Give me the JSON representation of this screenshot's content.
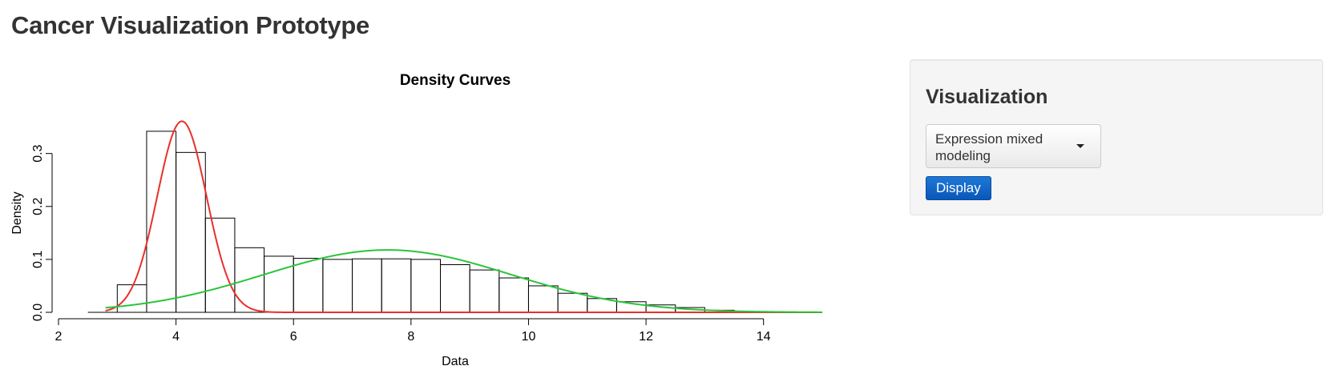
{
  "page": {
    "title": "Cancer Visualization Prototype"
  },
  "sidebar": {
    "heading": "Visualization",
    "select": {
      "value": "Expression mixed modeling"
    },
    "display_button": "Display"
  },
  "chart_data": {
    "type": "histogram-with-density-curves",
    "title": "Density Curves",
    "xlabel": "Data",
    "ylabel": "Density",
    "xlim": [
      2,
      15
    ],
    "ylim": [
      0,
      0.36
    ],
    "x_ticks": [
      "2",
      "4",
      "6",
      "8",
      "10",
      "12",
      "14"
    ],
    "y_ticks": [
      "0.0",
      "0.1",
      "0.2",
      "0.3"
    ],
    "grid": false,
    "bins": [
      {
        "x0": 2.5,
        "x1": 3.0,
        "density": 0.0
      },
      {
        "x0": 3.0,
        "x1": 3.5,
        "density": 0.052
      },
      {
        "x0": 3.5,
        "x1": 4.0,
        "density": 0.342
      },
      {
        "x0": 4.0,
        "x1": 4.5,
        "density": 0.302
      },
      {
        "x0": 4.5,
        "x1": 5.0,
        "density": 0.178
      },
      {
        "x0": 5.0,
        "x1": 5.5,
        "density": 0.122
      },
      {
        "x0": 5.5,
        "x1": 6.0,
        "density": 0.106
      },
      {
        "x0": 6.0,
        "x1": 6.5,
        "density": 0.102
      },
      {
        "x0": 6.5,
        "x1": 7.0,
        "density": 0.1
      },
      {
        "x0": 7.0,
        "x1": 7.5,
        "density": 0.101
      },
      {
        "x0": 7.5,
        "x1": 8.0,
        "density": 0.101
      },
      {
        "x0": 8.0,
        "x1": 8.5,
        "density": 0.1
      },
      {
        "x0": 8.5,
        "x1": 9.0,
        "density": 0.09
      },
      {
        "x0": 9.0,
        "x1": 9.5,
        "density": 0.08
      },
      {
        "x0": 9.5,
        "x1": 10.0,
        "density": 0.065
      },
      {
        "x0": 10.0,
        "x1": 10.5,
        "density": 0.05
      },
      {
        "x0": 10.5,
        "x1": 11.0,
        "density": 0.036
      },
      {
        "x0": 11.0,
        "x1": 11.5,
        "density": 0.026
      },
      {
        "x0": 11.5,
        "x1": 12.0,
        "density": 0.02
      },
      {
        "x0": 12.0,
        "x1": 12.5,
        "density": 0.014
      },
      {
        "x0": 12.5,
        "x1": 13.0,
        "density": 0.009
      },
      {
        "x0": 13.0,
        "x1": 13.5,
        "density": 0.004
      },
      {
        "x0": 13.5,
        "x1": 14.0,
        "density": 0.001
      }
    ],
    "series": [
      {
        "color": "#e8302a",
        "distribution": "normal",
        "mean": 4.1,
        "sd": 0.42,
        "weight": 0.38,
        "x_range": [
          2.8,
          15
        ]
      },
      {
        "color": "#2bc43b",
        "distribution": "normal",
        "mean": 7.6,
        "sd": 2.1,
        "weight": 0.62,
        "x_range": [
          2.8,
          15
        ]
      }
    ]
  }
}
